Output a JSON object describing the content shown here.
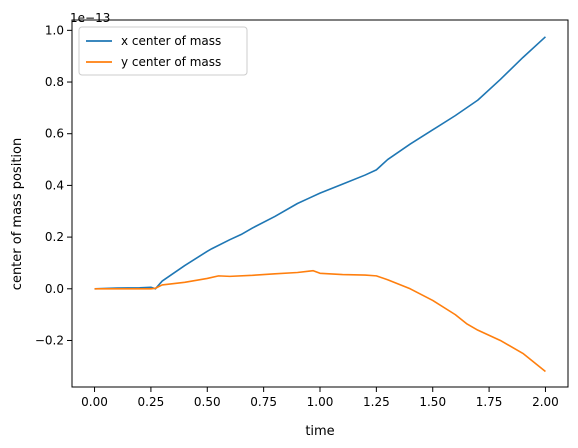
{
  "chart_data": {
    "type": "line",
    "title": "",
    "xlabel": "time",
    "ylabel": "center of mass position",
    "y_offset_label": "1e−13",
    "y_scale_exponent": -13,
    "xlim": [
      -0.1,
      2.1
    ],
    "ylim": [
      -0.38,
      1.04
    ],
    "x_ticks": [
      0.0,
      0.25,
      0.5,
      0.75,
      1.0,
      1.25,
      1.5,
      1.75,
      2.0
    ],
    "x_tick_labels": [
      "0.00",
      "0.25",
      "0.50",
      "0.75",
      "1.00",
      "1.25",
      "1.50",
      "1.75",
      "2.00"
    ],
    "y_ticks": [
      -0.2,
      0.0,
      0.2,
      0.4,
      0.6,
      0.8,
      1.0
    ],
    "y_tick_labels": [
      "−0.2",
      "0.0",
      "0.2",
      "0.4",
      "0.6",
      "0.8",
      "1.0"
    ],
    "grid": false,
    "legend_position": "upper-left",
    "series": [
      {
        "name": "x center of mass",
        "color": "#1f77b4",
        "x": [
          0.0,
          0.1,
          0.2,
          0.25,
          0.27,
          0.3,
          0.4,
          0.5,
          0.52,
          0.6,
          0.65,
          0.7,
          0.8,
          0.9,
          0.95,
          1.0,
          1.1,
          1.2,
          1.25,
          1.3,
          1.4,
          1.5,
          1.6,
          1.65,
          1.7,
          1.8,
          1.9,
          2.0
        ],
        "values": [
          0.0,
          0.003,
          0.004,
          0.006,
          0.0,
          0.03,
          0.09,
          0.145,
          0.155,
          0.19,
          0.21,
          0.235,
          0.28,
          0.33,
          0.35,
          0.37,
          0.405,
          0.44,
          0.46,
          0.5,
          0.56,
          0.615,
          0.67,
          0.7,
          0.73,
          0.81,
          0.895,
          0.975
        ]
      },
      {
        "name": "y center of mass",
        "color": "#ff7f0e",
        "x": [
          0.0,
          0.1,
          0.2,
          0.25,
          0.27,
          0.3,
          0.4,
          0.5,
          0.55,
          0.6,
          0.7,
          0.8,
          0.9,
          0.95,
          0.97,
          1.0,
          1.1,
          1.2,
          1.25,
          1.3,
          1.4,
          1.5,
          1.6,
          1.65,
          1.7,
          1.8,
          1.9,
          2.0
        ],
        "values": [
          0.0,
          0.0,
          0.0,
          0.0,
          0.002,
          0.015,
          0.025,
          0.04,
          0.05,
          0.048,
          0.052,
          0.058,
          0.063,
          0.068,
          0.07,
          0.06,
          0.055,
          0.053,
          0.05,
          0.035,
          0.0,
          -0.045,
          -0.1,
          -0.135,
          -0.16,
          -0.2,
          -0.25,
          -0.32
        ]
      }
    ]
  }
}
